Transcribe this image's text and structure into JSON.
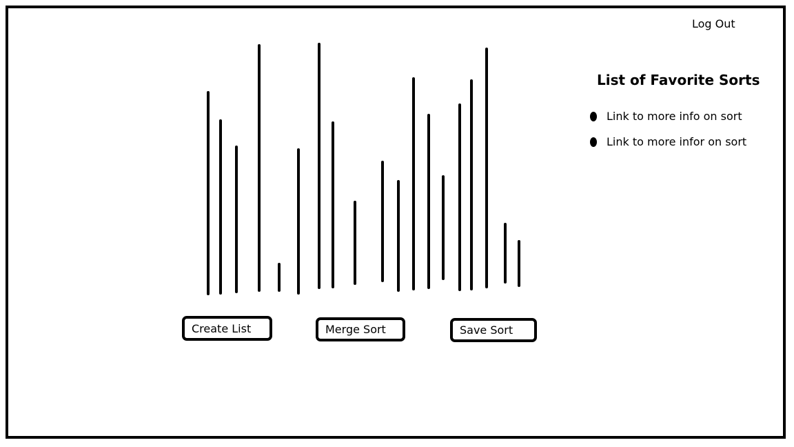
{
  "header": {
    "logout_label": "Log Out"
  },
  "visualizer": {
    "bar_heights": [
      292,
      250,
      210,
      355,
      38,
      208,
      353,
      238,
      118,
      172,
      158,
      305,
      250,
      148,
      268,
      302,
      345,
      84,
      64
    ]
  },
  "buttons": {
    "create_label": "Create List",
    "merge_label": "Merge Sort",
    "save_label": "Save Sort"
  },
  "favorites": {
    "title": "List of Favorite Sorts",
    "items": [
      {
        "label": "Link to more info on sort"
      },
      {
        "label": "Link to more infor on sort"
      }
    ]
  }
}
